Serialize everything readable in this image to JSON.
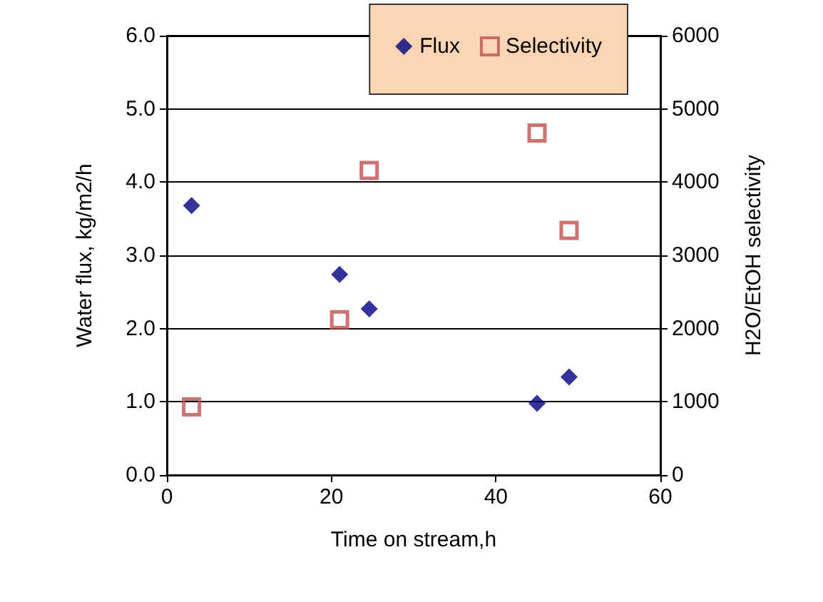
{
  "chart_data": {
    "type": "scatter",
    "xlabel": "Time on stream,h",
    "ylabel": "Water flux, kg/m2/h",
    "y2label": "H2O/EtOH selectivity",
    "series": [
      {
        "name": "Flux",
        "color": "#000080",
        "marker": "diamond",
        "x": [
          3.0,
          21.0,
          24.6,
          45.0,
          48.9
        ],
        "values": [
          3.68,
          2.74,
          2.27,
          0.98,
          1.34
        ]
      },
      {
        "name": "Selectivity",
        "color": "#c0504d",
        "marker": "square",
        "axis": "y2",
        "x": [
          3.0,
          21.0,
          24.6,
          45.0,
          48.9
        ],
        "values": [
          930,
          2120,
          4160,
          4670,
          3340
        ]
      }
    ],
    "xlim": [
      0,
      60
    ],
    "xticks": [
      0,
      20,
      40,
      60
    ],
    "ylim": [
      0,
      6
    ],
    "yticks": [
      {
        "value": 0,
        "label": "0.0"
      },
      {
        "value": 1,
        "label": "1.0"
      },
      {
        "value": 2,
        "label": "2.0"
      },
      {
        "value": 3,
        "label": "3.0"
      },
      {
        "value": 4,
        "label": "4.0"
      },
      {
        "value": 5,
        "label": "5.0"
      },
      {
        "value": 6,
        "label": "6.0"
      }
    ],
    "y2lim": [
      0,
      6000
    ],
    "y2ticks": [
      0,
      1000,
      2000,
      3000,
      4000,
      5000,
      6000
    ],
    "grid": "y",
    "legend": "top right"
  }
}
